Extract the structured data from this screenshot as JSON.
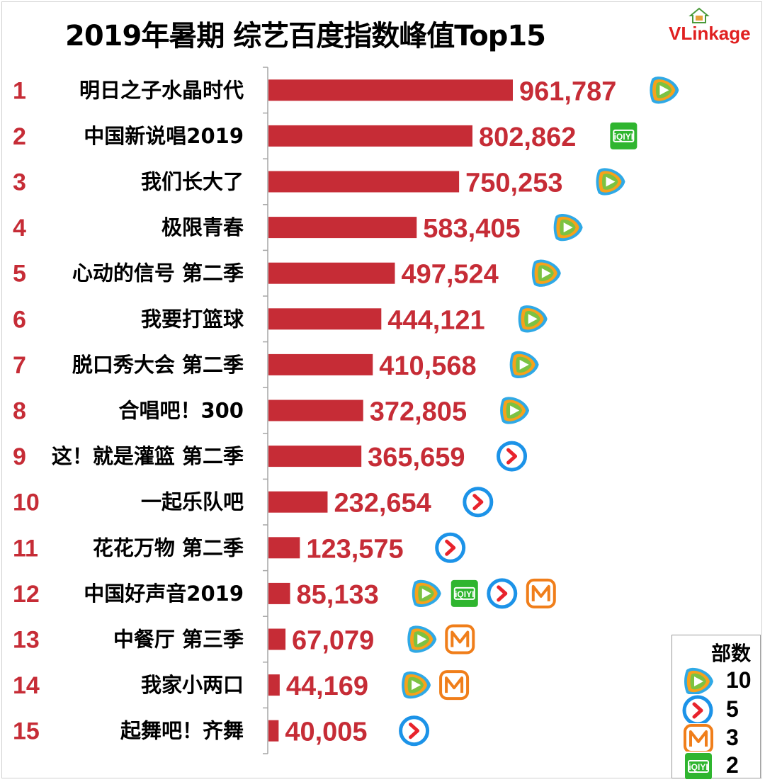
{
  "header": {
    "title": "2019年暑期 综艺百度指数峰值Top15",
    "logo": "VLinkage"
  },
  "colors": {
    "bar": "#c62c36",
    "rank_text": "#c62c36",
    "value_text": "#c62c36",
    "tencent": "#2fa9e6",
    "iqiyi": "#2fb52f",
    "youku": "#1c93e8",
    "mango": "#f07e1a"
  },
  "platform_icons": {
    "tencent": "tencent-video-icon",
    "iqiyi": "iqiyi-icon",
    "youku": "youku-icon",
    "mango": "mango-tv-icon"
  },
  "chart_data": {
    "type": "bar",
    "orientation": "horizontal",
    "title": "2019年暑期 综艺百度指数峰值Top15",
    "ranks": [
      "1",
      "2",
      "3",
      "4",
      "5",
      "6",
      "7",
      "8",
      "9",
      "10",
      "11",
      "12",
      "13",
      "14",
      "15"
    ],
    "categories": [
      "明日之子水晶时代",
      "中国新说唱2019",
      "我们长大了",
      "极限青春",
      "心动的信号 第二季",
      "我要打篮球",
      "脱口秀大会 第二季",
      "合唱吧！300",
      "这！就是灌篮 第二季",
      "一起乐队吧",
      "花花万物 第二季",
      "中国好声音2019",
      "中餐厅 第三季",
      "我家小两口",
      "起舞吧！齐舞"
    ],
    "values": [
      961787,
      802862,
      750253,
      583405,
      497524,
      444121,
      410568,
      372805,
      365659,
      232654,
      123575,
      85133,
      67079,
      44169,
      40005
    ],
    "value_labels": [
      "961,787",
      "802,862",
      "750,253",
      "583,405",
      "497,524",
      "444,121",
      "410,568",
      "372,805",
      "365,659",
      "232,654",
      "123,575",
      "85,133",
      "67,079",
      "44,169",
      "40,005"
    ],
    "platforms": [
      [
        "tencent"
      ],
      [
        "iqiyi"
      ],
      [
        "tencent"
      ],
      [
        "tencent"
      ],
      [
        "tencent"
      ],
      [
        "tencent"
      ],
      [
        "tencent"
      ],
      [
        "tencent"
      ],
      [
        "youku"
      ],
      [
        "youku"
      ],
      [
        "youku"
      ],
      [
        "tencent",
        "iqiyi",
        "youku",
        "mango"
      ],
      [
        "tencent",
        "mango"
      ],
      [
        "tencent",
        "mango"
      ],
      [
        "youku"
      ]
    ],
    "xlim": [
      0,
      1000000
    ],
    "grid": false,
    "legend": {
      "title": "部数",
      "position": "bottom-right",
      "entries": [
        {
          "platform": "tencent",
          "count": "10"
        },
        {
          "platform": "youku",
          "count": "5"
        },
        {
          "platform": "mango",
          "count": "3"
        },
        {
          "platform": "iqiyi",
          "count": "2"
        }
      ]
    }
  }
}
